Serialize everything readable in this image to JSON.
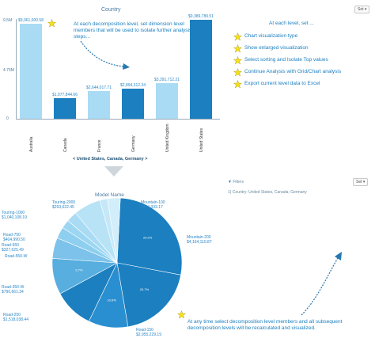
{
  "top_chart": {
    "title": "Country",
    "y_ticks": [
      "9.5M",
      "4.75M",
      "0"
    ],
    "breadcrumb": "< United States, Canada, Germany >",
    "colors": {
      "selected": "#1b7fc0",
      "unselected": "#a9dcf4"
    }
  },
  "chart_data": [
    {
      "type": "bar",
      "title": "Country",
      "categories": [
        "Australia",
        "Canada",
        "France",
        "Germany",
        "United Kingdom",
        "United States"
      ],
      "values": [
        9061000.58,
        1977844.66,
        2644017.71,
        2894312.34,
        3391712.21,
        9389789.51
      ],
      "value_labels": [
        "$9,061,000.58",
        "$1,977,844.66",
        "$2,644,017.71",
        "$2,894,312.34",
        "$3,391,712.21",
        "$9,389,789.51"
      ],
      "selected": [
        false,
        true,
        false,
        true,
        false,
        true
      ],
      "ylim": [
        0,
        9500000
      ]
    },
    {
      "type": "pie",
      "title": "Model Name",
      "slices": [
        {
          "label": "Mountain-200",
          "value": 4164110.87,
          "value_label": "$4,164,110.87",
          "pct": "29.2%"
        },
        {
          "label": "Road-150",
          "value": 2955229.19,
          "value_label": "$2,955,229.19",
          "pct": "20.7%"
        },
        {
          "label": "",
          "value": 1510000,
          "value_label": "",
          "pct": "10.6%"
        },
        {
          "label": "Road-250",
          "value": 1518038.44,
          "value_label": "$1,518,038.44",
          "pct": ""
        },
        {
          "label": "",
          "value": 1380000,
          "value_label": "",
          "pct": "9.7%"
        },
        {
          "label": "Road-350-W",
          "value": 790661.34,
          "value_label": "$790,661.34",
          "pct": ""
        },
        {
          "label": "Road-550-W",
          "value": 440000,
          "value_label": "",
          "pct": ""
        },
        {
          "label": "Road-650",
          "value": 327625.49,
          "value_label": "$327,625.49",
          "pct": ""
        },
        {
          "label": "Road-750",
          "value": 404990.5,
          "value_label": "$404,990.50",
          "pct": ""
        },
        {
          "label": "Touring-1000",
          "value": 1040108.19,
          "value_label": "$1,040,108.19",
          "pct": ""
        },
        {
          "label": "Touring-2000",
          "value": 293622.45,
          "value_label": "$293,622.45",
          "pct": ""
        },
        {
          "label": "Mountain-100",
          "value": 484333.17,
          "value_label": "$484,333.17",
          "pct": ""
        }
      ]
    }
  ],
  "top_callout": "At each decomposition level, set dimension level members that will be used to isolate further analysis steps...",
  "right_panel": {
    "heading": "At each level, set ...",
    "items": [
      "Chart visualization type",
      "Show enlarged visualization",
      "Select sorting and Isolate Top values",
      "Continue Analysis with Grid/Chart analysis",
      "Export current level data to Excel"
    ]
  },
  "set_button": "Set",
  "filters": {
    "label": "Filters",
    "text": "1) Country: United States, Canada, Germany"
  },
  "pie_title": "Model Name",
  "bottom_callout": "At any time select decomposition level members and all subsequent decomposition levels will be recalculated and visualized.",
  "colors": {
    "accent": "#1b7fc0",
    "light": "#a9dcf4",
    "star": "#f5e020",
    "arrow": "#b8c4cc"
  }
}
